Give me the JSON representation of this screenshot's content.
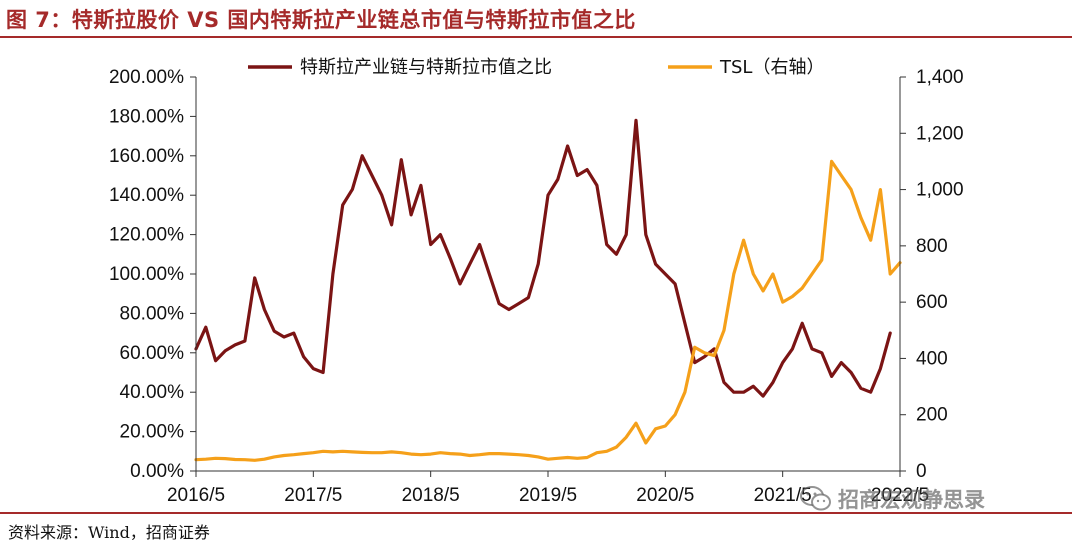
{
  "header": {
    "title": "图 7：特斯拉股价 VS 国内特斯拉产业链总市值与特斯拉市值之比"
  },
  "footer": {
    "source": "资料来源：Wind，招商证券",
    "watermark": "招商宏观静思录"
  },
  "chart_data": {
    "type": "line",
    "title": "",
    "legend_position": "top",
    "grid": false,
    "x_ticks": [
      "2016/5",
      "2017/5",
      "2018/5",
      "2019/5",
      "2020/5",
      "2021/5",
      "2022/5"
    ],
    "y_left": {
      "label": "",
      "range": [
        0,
        200
      ],
      "ticks": [
        "0.00%",
        "20.00%",
        "40.00%",
        "60.00%",
        "80.00%",
        "100.00%",
        "120.00%",
        "140.00%",
        "160.00%",
        "180.00%",
        "200.00%"
      ]
    },
    "y_right": {
      "label": "",
      "range": [
        0,
        1400
      ],
      "ticks": [
        "0",
        "200",
        "400",
        "600",
        "800",
        "1,000",
        "1,200",
        "1,400"
      ]
    },
    "series": [
      {
        "name": "特斯拉产业链与特斯拉市值之比",
        "axis": "left",
        "color": "#7b1414",
        "unit": "%",
        "points": [
          [
            "2016/5",
            62
          ],
          [
            "2016/6",
            73
          ],
          [
            "2016/7",
            56
          ],
          [
            "2016/8",
            61
          ],
          [
            "2016/9",
            64
          ],
          [
            "2016/10",
            66
          ],
          [
            "2016/11",
            98
          ],
          [
            "2016/12",
            82
          ],
          [
            "2017/1",
            71
          ],
          [
            "2017/2",
            68
          ],
          [
            "2017/3",
            70
          ],
          [
            "2017/4",
            58
          ],
          [
            "2017/5",
            52
          ],
          [
            "2017/6",
            50
          ],
          [
            "2017/7",
            100
          ],
          [
            "2017/8",
            135
          ],
          [
            "2017/9",
            143
          ],
          [
            "2017/10",
            160
          ],
          [
            "2017/11",
            150
          ],
          [
            "2017/12",
            140
          ],
          [
            "2018/1",
            125
          ],
          [
            "2018/2",
            158
          ],
          [
            "2018/3",
            130
          ],
          [
            "2018/4",
            145
          ],
          [
            "2018/5",
            115
          ],
          [
            "2018/6",
            120
          ],
          [
            "2018/7",
            108
          ],
          [
            "2018/8",
            95
          ],
          [
            "2018/9",
            105
          ],
          [
            "2018/10",
            115
          ],
          [
            "2018/11",
            100
          ],
          [
            "2018/12",
            85
          ],
          [
            "2019/1",
            82
          ],
          [
            "2019/2",
            85
          ],
          [
            "2019/3",
            88
          ],
          [
            "2019/4",
            105
          ],
          [
            "2019/5",
            140
          ],
          [
            "2019/6",
            148
          ],
          [
            "2019/7",
            165
          ],
          [
            "2019/8",
            150
          ],
          [
            "2019/9",
            153
          ],
          [
            "2019/10",
            145
          ],
          [
            "2019/11",
            115
          ],
          [
            "2019/12",
            110
          ],
          [
            "2020/1",
            120
          ],
          [
            "2020/2",
            178
          ],
          [
            "2020/3",
            120
          ],
          [
            "2020/4",
            105
          ],
          [
            "2020/5",
            100
          ],
          [
            "2020/6",
            95
          ],
          [
            "2020/7",
            75
          ],
          [
            "2020/8",
            55
          ],
          [
            "2020/9",
            58
          ],
          [
            "2020/10",
            62
          ],
          [
            "2020/11",
            45
          ],
          [
            "2020/12",
            40
          ],
          [
            "2021/1",
            40
          ],
          [
            "2021/2",
            43
          ],
          [
            "2021/3",
            38
          ],
          [
            "2021/4",
            45
          ],
          [
            "2021/5",
            55
          ],
          [
            "2021/6",
            62
          ],
          [
            "2021/7",
            75
          ],
          [
            "2021/8",
            62
          ],
          [
            "2021/9",
            60
          ],
          [
            "2021/10",
            48
          ],
          [
            "2021/11",
            55
          ],
          [
            "2021/12",
            50
          ],
          [
            "2022/1",
            42
          ],
          [
            "2022/2",
            40
          ],
          [
            "2022/3",
            52
          ],
          [
            "2022/4",
            70
          ]
        ]
      },
      {
        "name": "TSL（右轴）",
        "axis": "right",
        "color": "#f5a01a",
        "unit": "",
        "points": [
          [
            "2016/5",
            40
          ],
          [
            "2016/6",
            42
          ],
          [
            "2016/7",
            45
          ],
          [
            "2016/8",
            44
          ],
          [
            "2016/9",
            41
          ],
          [
            "2016/10",
            40
          ],
          [
            "2016/11",
            38
          ],
          [
            "2016/12",
            42
          ],
          [
            "2017/1",
            50
          ],
          [
            "2017/2",
            55
          ],
          [
            "2017/3",
            58
          ],
          [
            "2017/4",
            62
          ],
          [
            "2017/5",
            65
          ],
          [
            "2017/6",
            70
          ],
          [
            "2017/7",
            68
          ],
          [
            "2017/8",
            70
          ],
          [
            "2017/9",
            68
          ],
          [
            "2017/10",
            66
          ],
          [
            "2017/11",
            65
          ],
          [
            "2017/12",
            65
          ],
          [
            "2018/1",
            68
          ],
          [
            "2018/2",
            65
          ],
          [
            "2018/3",
            60
          ],
          [
            "2018/4",
            58
          ],
          [
            "2018/5",
            60
          ],
          [
            "2018/6",
            65
          ],
          [
            "2018/7",
            62
          ],
          [
            "2018/8",
            60
          ],
          [
            "2018/9",
            55
          ],
          [
            "2018/10",
            58
          ],
          [
            "2018/11",
            62
          ],
          [
            "2018/12",
            62
          ],
          [
            "2019/1",
            60
          ],
          [
            "2019/2",
            58
          ],
          [
            "2019/3",
            55
          ],
          [
            "2019/4",
            50
          ],
          [
            "2019/5",
            42
          ],
          [
            "2019/6",
            45
          ],
          [
            "2019/7",
            48
          ],
          [
            "2019/8",
            45
          ],
          [
            "2019/9",
            48
          ],
          [
            "2019/10",
            65
          ],
          [
            "2019/11",
            70
          ],
          [
            "2019/12",
            85
          ],
          [
            "2020/1",
            120
          ],
          [
            "2020/2",
            170
          ],
          [
            "2020/3",
            100
          ],
          [
            "2020/4",
            150
          ],
          [
            "2020/5",
            160
          ],
          [
            "2020/6",
            200
          ],
          [
            "2020/7",
            280
          ],
          [
            "2020/8",
            440
          ],
          [
            "2020/9",
            420
          ],
          [
            "2020/10",
            410
          ],
          [
            "2020/11",
            500
          ],
          [
            "2020/12",
            700
          ],
          [
            "2021/1",
            820
          ],
          [
            "2021/2",
            700
          ],
          [
            "2021/3",
            640
          ],
          [
            "2021/4",
            700
          ],
          [
            "2021/5",
            600
          ],
          [
            "2021/6",
            620
          ],
          [
            "2021/7",
            650
          ],
          [
            "2021/8",
            700
          ],
          [
            "2021/9",
            750
          ],
          [
            "2021/10",
            1100
          ],
          [
            "2021/11",
            1050
          ],
          [
            "2021/12",
            1000
          ],
          [
            "2022/1",
            900
          ],
          [
            "2022/2",
            820
          ],
          [
            "2022/3",
            1000
          ],
          [
            "2022/4",
            700
          ],
          [
            "2022/5",
            740
          ]
        ]
      }
    ]
  }
}
